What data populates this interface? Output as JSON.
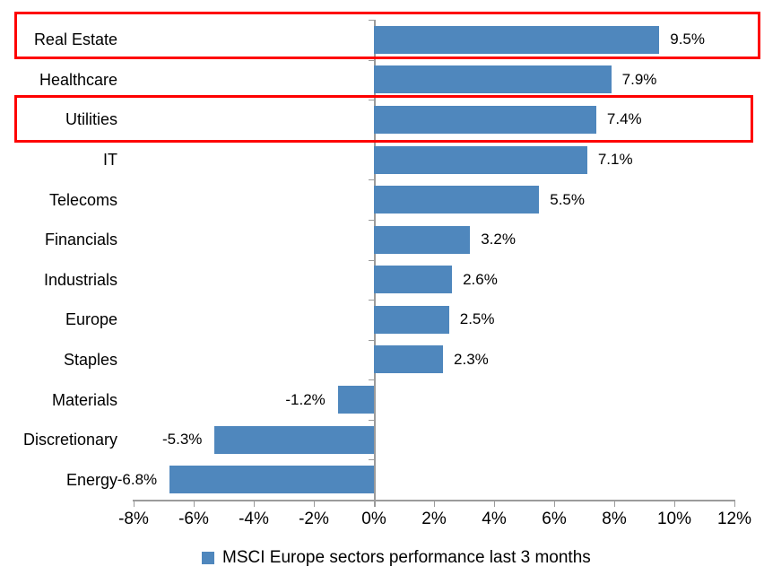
{
  "chart_data": {
    "type": "bar",
    "orientation": "horizontal",
    "title": "",
    "categories": [
      "Real Estate",
      "Healthcare",
      "Utilities",
      "IT",
      "Telecoms",
      "Financials",
      "Industrials",
      "Europe",
      "Staples",
      "Materials",
      "Discretionary",
      "Energy"
    ],
    "values": [
      9.5,
      7.9,
      7.4,
      7.1,
      5.5,
      3.2,
      2.6,
      2.5,
      2.3,
      -1.2,
      -5.3,
      -6.8
    ],
    "value_labels": [
      "9.5%",
      "7.9%",
      "7.4%",
      "7.1%",
      "5.5%",
      "3.2%",
      "2.6%",
      "2.5%",
      "2.3%",
      "-1.2%",
      "-5.3%",
      "-6.8%"
    ],
    "x_ticks": [
      -8,
      -6,
      -4,
      -2,
      0,
      2,
      4,
      6,
      8,
      10,
      12
    ],
    "x_tick_labels": [
      "-8%",
      "-6%",
      "-4%",
      "-2%",
      "0%",
      "2%",
      "4%",
      "6%",
      "8%",
      "10%",
      "12%"
    ],
    "xlim": [
      -8,
      12
    ],
    "grid": false,
    "legend_position": "bottom",
    "highlighted_categories": [
      "Real Estate",
      "Utilities"
    ]
  },
  "legend": {
    "label": "MSCI Europe sectors performance last 3 months"
  },
  "colors": {
    "bar": "#4F87BD",
    "highlight_border": "#FE0000",
    "axis": "#9B9B9B",
    "text": "#000000"
  }
}
